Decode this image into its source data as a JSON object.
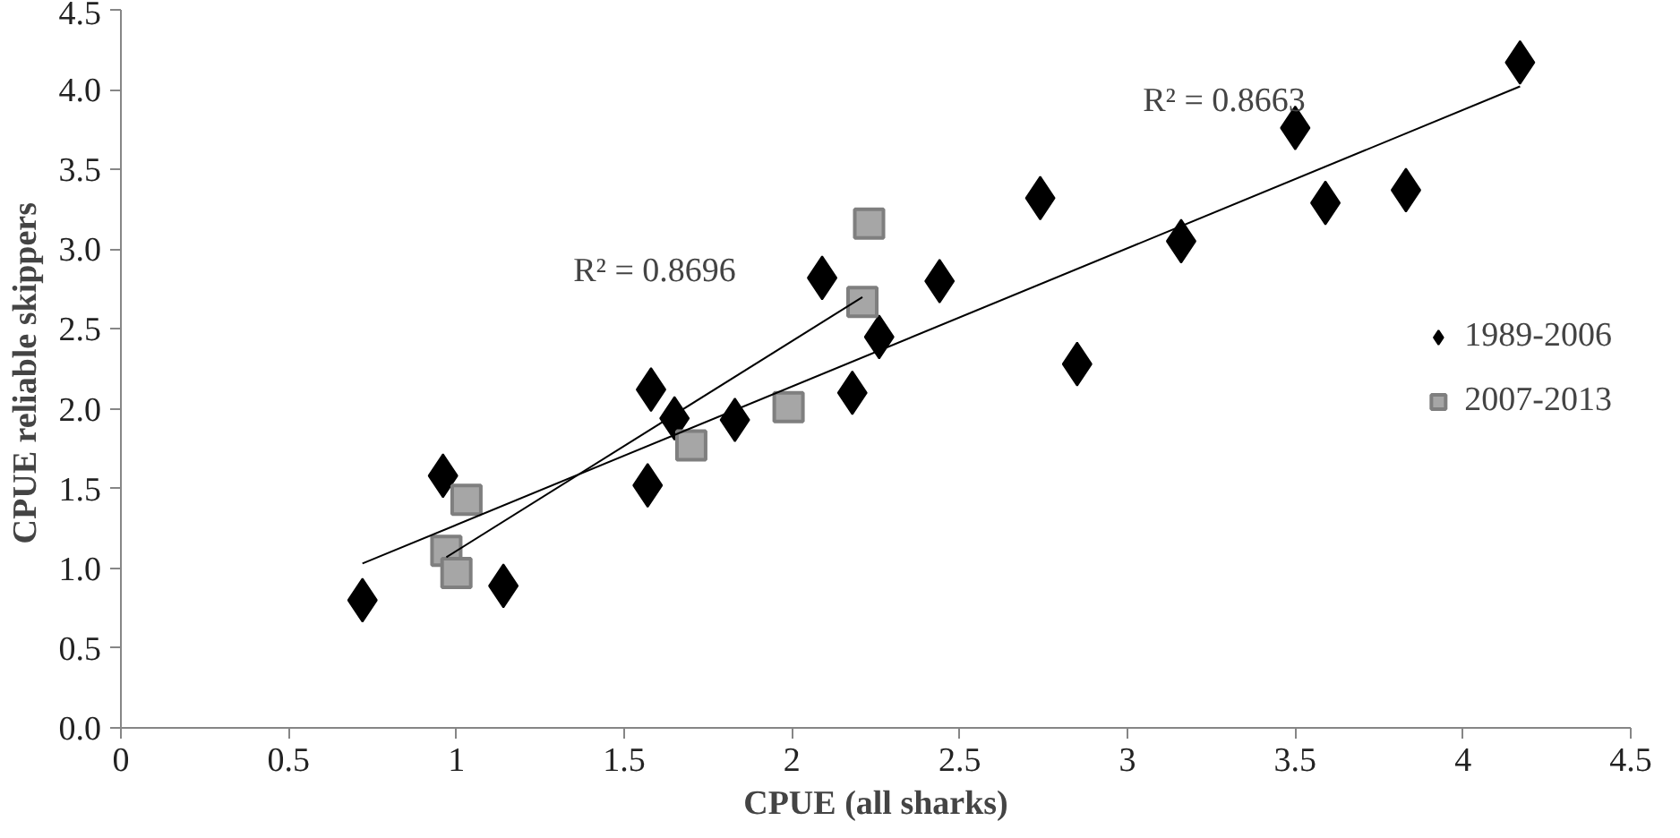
{
  "chart_data": {
    "type": "scatter",
    "xlabel": "CPUE (all sharks)",
    "ylabel": "CPUE reliable  skippers",
    "xlim": [
      0,
      4.5
    ],
    "ylim": [
      0,
      4.5
    ],
    "xticks": [
      0,
      0.5,
      1,
      1.5,
      2,
      2.5,
      3,
      3.5,
      4,
      4.5
    ],
    "yticks": [
      {
        "value": 0,
        "label": "0.0"
      },
      {
        "value": 0.5,
        "label": "0.5"
      },
      {
        "value": 1,
        "label": "1.0"
      },
      {
        "value": 1.5,
        "label": "1.5"
      },
      {
        "value": 2,
        "label": "2.0"
      },
      {
        "value": 2.5,
        "label": "2.5"
      },
      {
        "value": 3,
        "label": "3.0"
      },
      {
        "value": 3.5,
        "label": "3.5"
      },
      {
        "value": 4,
        "label": "4.0"
      },
      {
        "value": 4.5,
        "label": "4.5"
      }
    ],
    "grid": false,
    "legend": "right",
    "series": [
      {
        "name": "1989-2006",
        "marker": "diamond",
        "color": "#000000",
        "x": [
          0.72,
          0.96,
          1.14,
          1.57,
          1.58,
          1.65,
          1.83,
          2.09,
          2.18,
          2.26,
          2.44,
          2.74,
          2.85,
          3.16,
          3.5,
          3.59,
          3.83,
          4.17
        ],
        "values": [
          0.8,
          1.58,
          0.89,
          1.52,
          2.12,
          1.94,
          1.93,
          2.82,
          2.1,
          2.45,
          2.8,
          3.32,
          2.28,
          3.05,
          3.76,
          3.29,
          3.37,
          4.17
        ]
      },
      {
        "name": "2007-2013",
        "marker": "square",
        "color": "#a6a6a6",
        "x": [
          0.97,
          1.0,
          1.03,
          1.7,
          1.99,
          2.21,
          2.23
        ],
        "values": [
          1.11,
          0.97,
          1.43,
          1.77,
          2.01,
          2.67,
          3.16
        ]
      },
      {
        "type": "line",
        "color": "#000000",
        "x": [
          0.72,
          4.17
        ],
        "values": [
          1.03,
          4.02
        ]
      },
      {
        "type": "line",
        "color": "#000000",
        "x": [
          0.97,
          2.21
        ],
        "values": [
          1.07,
          2.7
        ]
      }
    ],
    "annotations": [
      "R² = 0.8663",
      "R² = 0.8696"
    ]
  }
}
